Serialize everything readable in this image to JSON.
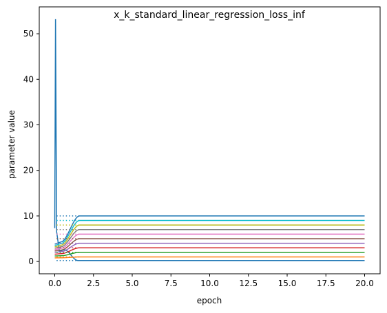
{
  "chart_data": {
    "type": "line",
    "title": "x_k_standard_linear_regression_loss_inf",
    "xlabel": "epoch",
    "ylabel": "parameter value",
    "xlim": [
      -1.0,
      21.0
    ],
    "ylim": [
      -2.7,
      55.9
    ],
    "xticks": [
      "0.0",
      "2.5",
      "5.0",
      "7.5",
      "10.0",
      "12.5",
      "15.0",
      "17.5",
      "20.0"
    ],
    "xtick_values": [
      0,
      2.5,
      5,
      7.5,
      10,
      12.5,
      15,
      17.5,
      20
    ],
    "yticks": [
      "0",
      "10",
      "20",
      "30",
      "40",
      "50"
    ],
    "ytick_values": [
      0,
      10,
      20,
      30,
      40,
      50
    ],
    "grid": false,
    "dotted_reference_start": 0.12,
    "dotted_reference_end": 1.6,
    "series": [
      {
        "color": "#1f77b4",
        "start": 53.2,
        "peak_x": 0.05,
        "dip": 2.2,
        "final": 0.2
      },
      {
        "color": "#ff7f0e",
        "start": 0.8,
        "final": 1.0
      },
      {
        "color": "#2ca02c",
        "start": 1.2,
        "final": 2.0
      },
      {
        "color": "#d62728",
        "start": 1.6,
        "final": 3.0
      },
      {
        "color": "#9467bd",
        "start": 2.0,
        "final": 4.0
      },
      {
        "color": "#8c564b",
        "start": 2.3,
        "final": 5.0
      },
      {
        "color": "#e377c2",
        "start": 2.6,
        "final": 6.0
      },
      {
        "color": "#7f7f7f",
        "start": 2.9,
        "final": 7.0
      },
      {
        "color": "#bcbd22",
        "start": 3.2,
        "final": 8.0
      },
      {
        "color": "#17becf",
        "start": 3.5,
        "final": 9.0
      },
      {
        "color": "#1f77b4",
        "start": 3.8,
        "final": 10.0
      }
    ]
  }
}
